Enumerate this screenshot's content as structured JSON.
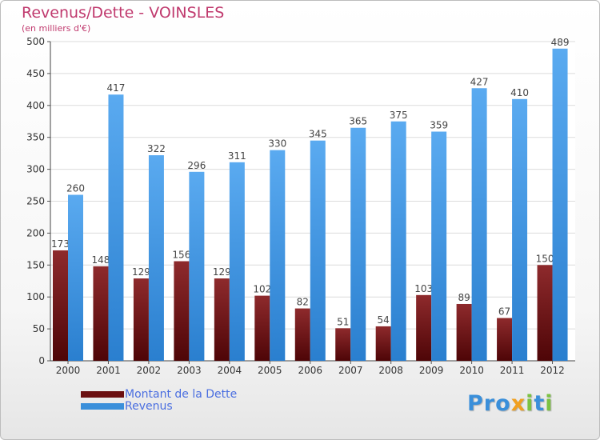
{
  "header": {
    "title": "Revenus/Dette - VOINSLES",
    "subtitle": "(en milliers d'€)"
  },
  "colors": {
    "dette": "#7a1a1c",
    "revenus": "#3a8fda",
    "title": "#c03a6e",
    "legend_text": "#4a6ee0"
  },
  "legend": {
    "items": [
      {
        "label": "Montant de la Dette",
        "color": "#6b0f10"
      },
      {
        "label": "Revenus",
        "color": "#3a8fda"
      }
    ]
  },
  "logo": {
    "letters": [
      {
        "char": "P",
        "color": "#3a8fda"
      },
      {
        "char": "r",
        "color": "#3a8fda"
      },
      {
        "char": "o",
        "color": "#3a8fda"
      },
      {
        "char": "x",
        "color": "#f0a020"
      },
      {
        "char": "i",
        "color": "#7cc242"
      },
      {
        "char": "t",
        "color": "#3a8fda"
      },
      {
        "char": "i",
        "color": "#7cc242"
      }
    ]
  },
  "chart_data": {
    "type": "bar",
    "title": "Revenus/Dette - VOINSLES",
    "subtitle": "(en milliers d'€)",
    "categories": [
      "2000",
      "2001",
      "2002",
      "2003",
      "2004",
      "2005",
      "2006",
      "2007",
      "2008",
      "2009",
      "2010",
      "2011",
      "2012"
    ],
    "series": [
      {
        "name": "Montant de la Dette",
        "values": [
          173,
          148,
          129,
          156,
          129,
          102,
          82,
          51,
          54,
          103,
          89,
          67,
          150
        ]
      },
      {
        "name": "Revenus",
        "values": [
          260,
          417,
          322,
          296,
          311,
          330,
          345,
          365,
          375,
          359,
          427,
          410,
          489
        ]
      }
    ],
    "ylim": [
      0,
      500
    ],
    "yticks": [
      0,
      50,
      100,
      150,
      200,
      250,
      300,
      350,
      400,
      450,
      500
    ],
    "grid": true,
    "legend_position": "bottom-left"
  }
}
